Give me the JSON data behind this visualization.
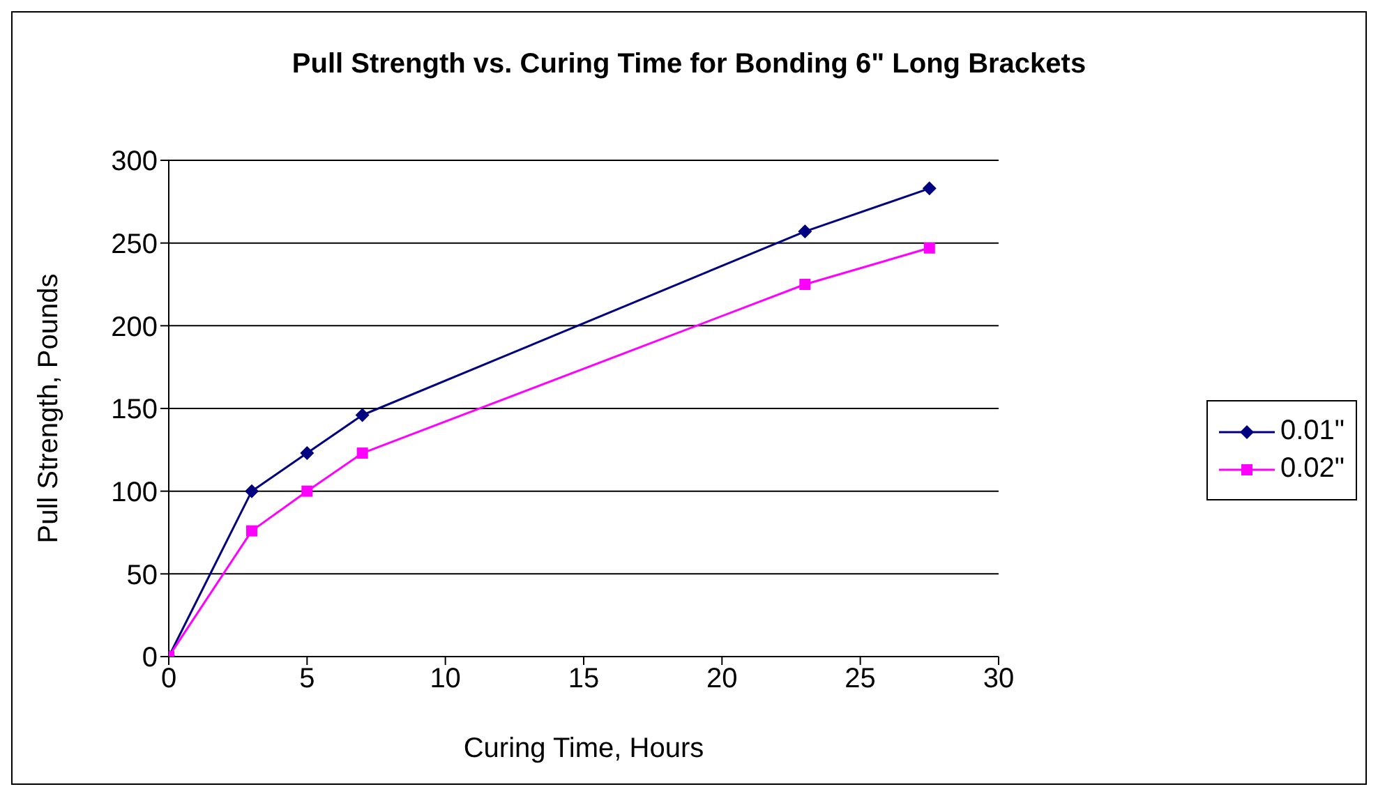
{
  "chart_data": {
    "type": "line",
    "title": "Pull Strength vs. Curing Time for Bonding 6\" Long Brackets",
    "xlabel": "Curing Time, Hours",
    "ylabel": "Pull Strength,  Pounds",
    "x": [
      0,
      3,
      5,
      7,
      23,
      27.5
    ],
    "series": [
      {
        "name": "0.01\"",
        "color": "#000080",
        "marker": "diamond",
        "values": [
          0,
          100,
          123,
          146,
          257,
          283
        ]
      },
      {
        "name": "0.02\"",
        "color": "#ff00ff",
        "marker": "square",
        "values": [
          0,
          76,
          100,
          123,
          225,
          247
        ]
      }
    ],
    "xlim": [
      0,
      30
    ],
    "xticks": [
      0,
      5,
      10,
      15,
      20,
      25,
      30
    ],
    "ylim": [
      0,
      300
    ],
    "yticks": [
      0,
      50,
      100,
      150,
      200,
      250,
      300
    ],
    "grid": "y",
    "legend": "right",
    "line_style": "solid"
  }
}
